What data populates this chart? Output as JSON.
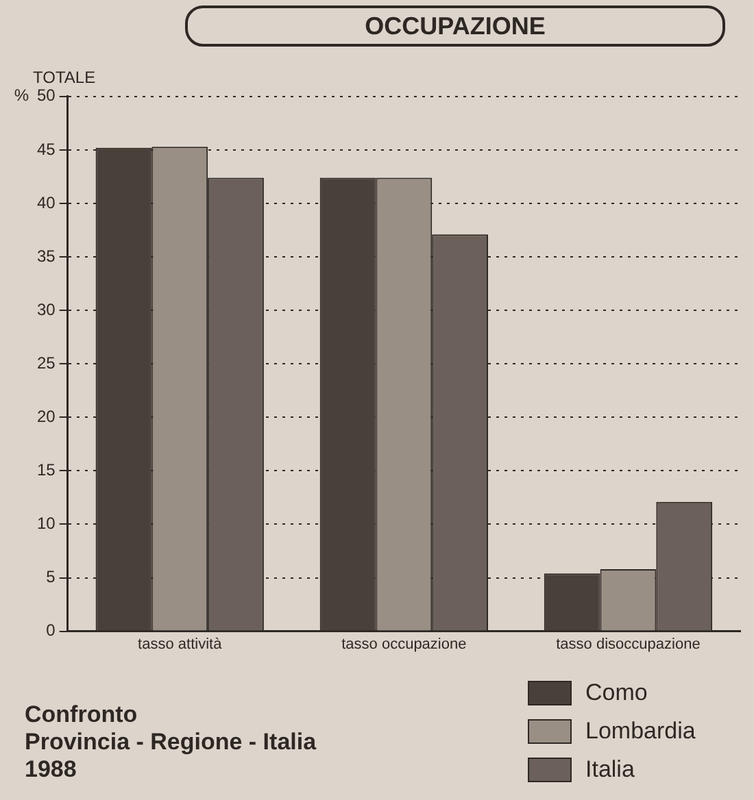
{
  "chart_data": {
    "type": "bar",
    "title": "OCCUPAZIONE",
    "subtitle": "TOTALE",
    "ylabel": "%",
    "categories": [
      "tasso attività",
      "tasso occupazione",
      "tasso disoccupazione"
    ],
    "series": [
      {
        "name": "Como",
        "color": "#4a403a",
        "values": [
          45.2,
          42.4,
          5.4
        ]
      },
      {
        "name": "Lombardia",
        "color": "#9a8f85",
        "values": [
          45.3,
          42.4,
          5.8
        ]
      },
      {
        "name": "Italia",
        "color": "#6b605a",
        "values": [
          42.4,
          37.1,
          12.1
        ]
      }
    ],
    "ylim": [
      0,
      50
    ],
    "yticks": [
      0,
      5,
      10,
      15,
      20,
      25,
      30,
      35,
      40,
      45,
      50
    ],
    "grid": "y",
    "legend": "bottom right",
    "annotations": [
      "Confronto",
      "Provincia - Regione - Italia",
      "1988"
    ]
  }
}
